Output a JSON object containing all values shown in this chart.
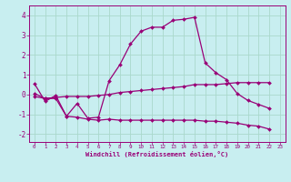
{
  "xlabel": "Windchill (Refroidissement éolien,°C)",
  "bg_color": "#c8eef0",
  "line_color": "#990077",
  "grid_color": "#aad8cc",
  "xlim": [
    -0.5,
    23.5
  ],
  "ylim": [
    -2.4,
    4.5
  ],
  "x": [
    0,
    1,
    2,
    3,
    4,
    5,
    6,
    7,
    8,
    9,
    10,
    11,
    12,
    13,
    14,
    15,
    16,
    17,
    18,
    19,
    20,
    21,
    22,
    23
  ],
  "line1": [
    0.55,
    -0.35,
    -0.05,
    -1.1,
    -0.45,
    -1.2,
    -1.15,
    0.7,
    1.5,
    2.55,
    3.2,
    3.4,
    3.4,
    3.75,
    3.8,
    3.9,
    1.6,
    1.1,
    0.75,
    0.05,
    -0.3,
    -0.5,
    -0.7,
    null
  ],
  "line2": [
    0.05,
    -0.2,
    -0.15,
    -0.1,
    -0.1,
    -0.1,
    -0.05,
    0.0,
    0.1,
    0.15,
    0.2,
    0.25,
    0.3,
    0.35,
    0.4,
    0.5,
    0.5,
    0.5,
    0.55,
    0.6,
    0.6,
    0.6,
    0.6,
    null
  ],
  "line3": [
    -0.1,
    -0.2,
    -0.2,
    -1.1,
    -1.15,
    -1.25,
    -1.3,
    -1.25,
    -1.3,
    -1.3,
    -1.3,
    -1.3,
    -1.3,
    -1.3,
    -1.3,
    -1.3,
    -1.35,
    -1.35,
    -1.4,
    -1.45,
    -1.55,
    -1.6,
    -1.75,
    null
  ]
}
